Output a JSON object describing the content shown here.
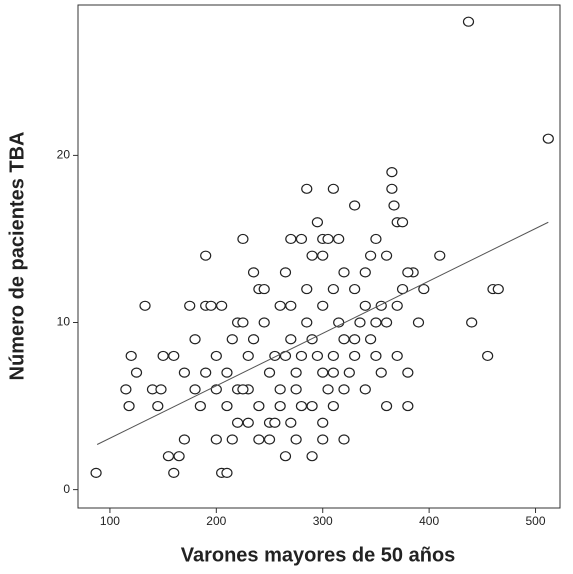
{
  "chart_data": {
    "type": "scatter",
    "x_label": "Varones mayores de 50 años",
    "y_label": "Número de pacientes TBA",
    "xlim": [
      70,
      523
    ],
    "ylim": [
      -1.1,
      29
    ],
    "xticks": [
      100,
      200,
      300,
      400,
      500
    ],
    "yticks": [
      0,
      10,
      20
    ],
    "color": "#222222",
    "x": [
      87,
      437,
      512,
      440,
      455,
      460,
      465,
      410,
      395,
      390,
      380,
      385,
      360,
      365,
      365,
      367,
      370,
      375,
      330,
      310,
      285,
      295,
      225,
      190,
      133,
      120,
      115,
      118,
      125,
      140,
      148,
      160,
      165,
      155,
      160,
      170,
      175,
      180,
      185,
      190,
      195,
      200,
      205,
      210,
      215,
      220,
      230,
      240,
      250,
      265,
      275,
      290,
      300,
      320,
      235,
      240,
      270,
      280,
      300,
      305,
      315,
      350,
      300,
      290,
      320,
      340,
      345,
      360,
      380,
      260,
      270,
      300,
      310,
      330,
      340,
      355,
      370,
      375,
      200,
      210,
      215,
      220,
      230,
      235,
      245,
      250,
      255,
      260,
      265,
      270,
      275,
      280,
      285,
      290,
      295,
      300,
      305,
      310,
      315,
      320,
      325,
      330,
      335,
      340,
      345,
      350,
      355,
      360,
      370,
      380,
      200,
      210,
      220,
      230,
      240,
      250,
      260,
      270,
      280,
      290,
      300,
      310,
      320,
      205,
      225,
      245,
      265,
      285,
      255,
      275,
      225,
      190,
      180,
      170,
      150,
      145,
      310,
      330,
      350
    ],
    "values": [
      1,
      28,
      21,
      10,
      8,
      12,
      12,
      14,
      12,
      10,
      5,
      13,
      5,
      19,
      18,
      17,
      16,
      16,
      17,
      18,
      18,
      16,
      15,
      14,
      11,
      8,
      6,
      5,
      7,
      6,
      6,
      8,
      2,
      2,
      1,
      3,
      11,
      9,
      5,
      11,
      11,
      3,
      1,
      1,
      3,
      4,
      4,
      3,
      3,
      2,
      3,
      2,
      3,
      3,
      13,
      12,
      15,
      15,
      15,
      15,
      15,
      15,
      14,
      14,
      13,
      13,
      14,
      14,
      13,
      11,
      11,
      11,
      12,
      12,
      11,
      11,
      11,
      12,
      8,
      7,
      9,
      10,
      8,
      9,
      10,
      7,
      8,
      6,
      8,
      9,
      7,
      8,
      10,
      9,
      8,
      7,
      6,
      8,
      10,
      9,
      7,
      8,
      10,
      6,
      9,
      8,
      7,
      10,
      8,
      7,
      6,
      5,
      6,
      6,
      5,
      4,
      5,
      4,
      5,
      5,
      4,
      5,
      6,
      11,
      10,
      12,
      13,
      12,
      4,
      6,
      6,
      7,
      6,
      7,
      8,
      5,
      7,
      9,
      10
    ],
    "trend_line": {
      "x": [
        88,
        512
      ],
      "values": [
        2.7,
        16
      ]
    }
  }
}
